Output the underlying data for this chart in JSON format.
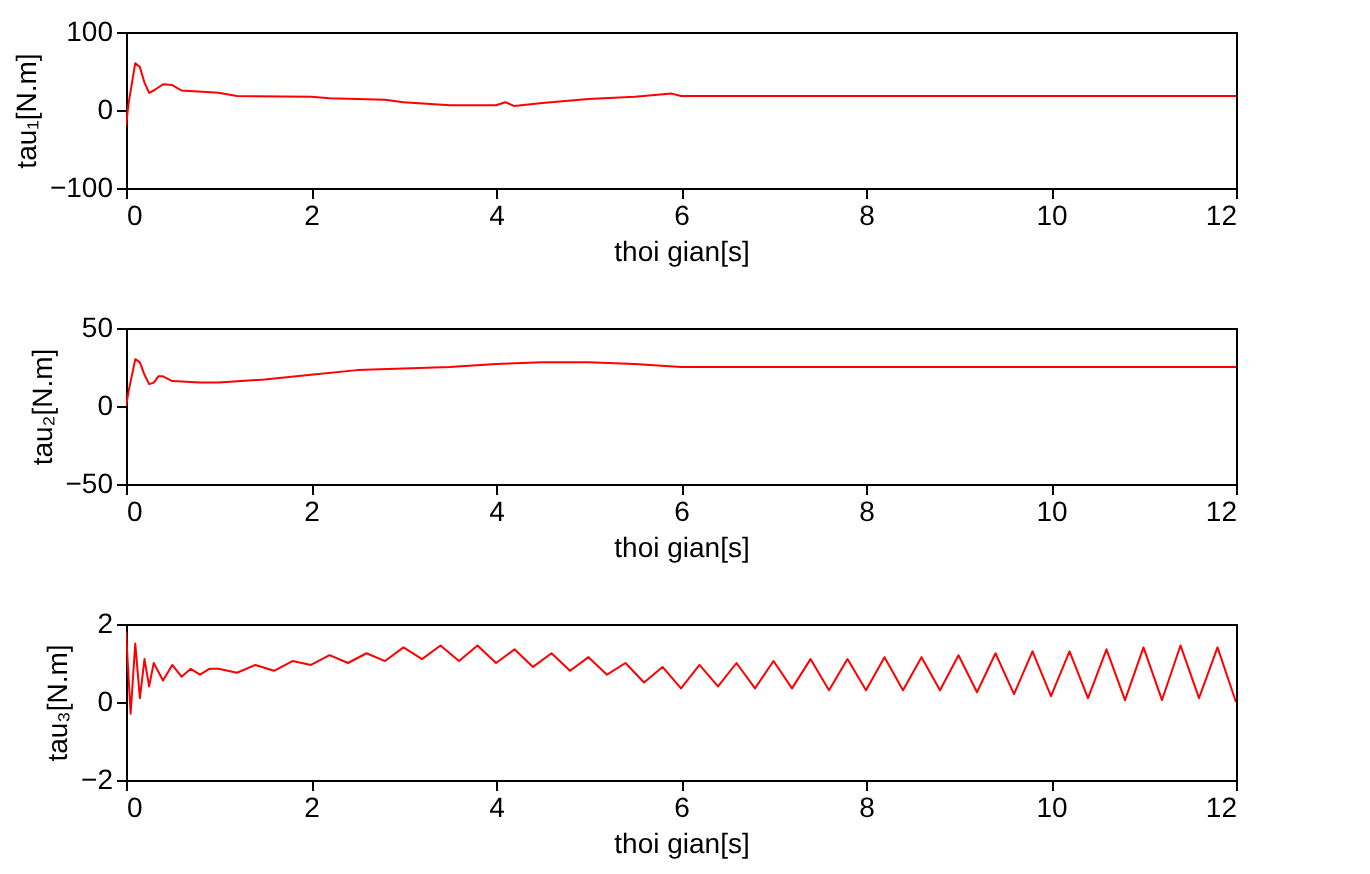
{
  "chart_data": [
    {
      "type": "line",
      "xlabel": "thoi gian[s]",
      "ylabel": "tau₁[N.m]",
      "xlim": [
        0,
        12
      ],
      "ylim": [
        -100,
        100
      ],
      "xticks": [
        0,
        2,
        4,
        6,
        8,
        10,
        12
      ],
      "yticks": [
        -100,
        0,
        100
      ],
      "grid": false,
      "x": [
        0,
        0.03,
        0.1,
        0.15,
        0.2,
        0.25,
        0.3,
        0.4,
        0.5,
        0.6,
        1.0,
        1.2,
        2.0,
        2.2,
        2.8,
        3.0,
        3.5,
        4.0,
        4.1,
        4.2,
        4.5,
        5.0,
        5.5,
        5.9,
        6.0,
        6.2,
        12
      ],
      "series": [
        {
          "color": "#ff0000",
          "values": [
            -20,
            10,
            60,
            55,
            35,
            22,
            25,
            33,
            32,
            25,
            22,
            18,
            17,
            15,
            13,
            10,
            6,
            6,
            10,
            5,
            9,
            14,
            17,
            21,
            18,
            18,
            18
          ]
        }
      ]
    },
    {
      "type": "line",
      "xlabel": "thoi gian[s]",
      "ylabel": "tau₂[N.m]",
      "xlim": [
        0,
        12
      ],
      "ylim": [
        -50,
        50
      ],
      "xticks": [
        0,
        2,
        4,
        6,
        8,
        10,
        12
      ],
      "yticks": [
        -50,
        0,
        50
      ],
      "grid": false,
      "x": [
        0,
        0.03,
        0.1,
        0.15,
        0.2,
        0.25,
        0.3,
        0.35,
        0.4,
        0.5,
        0.8,
        1.0,
        1.5,
        2,
        2.5,
        3,
        3.5,
        4,
        4.5,
        5,
        5.5,
        6,
        8,
        10,
        12
      ],
      "series": [
        {
          "color": "#ff0000",
          "values": [
            0,
            10,
            30,
            28,
            20,
            14,
            15,
            19,
            19,
            16,
            15,
            15,
            17,
            20,
            23,
            24,
            25,
            27,
            28,
            28,
            27,
            25,
            25,
            25,
            25
          ]
        }
      ]
    },
    {
      "type": "line",
      "xlabel": "thoi gian[s]",
      "ylabel": "tau₃[N.m]",
      "xlim": [
        0,
        12
      ],
      "ylim": [
        -2,
        2
      ],
      "xticks": [
        0,
        2,
        4,
        6,
        8,
        10,
        12
      ],
      "yticks": [
        -2,
        0,
        2
      ],
      "grid": false,
      "x": [
        0,
        0.05,
        0.1,
        0.15,
        0.2,
        0.25,
        0.3,
        0.4,
        0.5,
        0.6,
        0.7,
        0.8,
        0.9,
        1.0,
        1.2,
        1.4,
        1.6,
        1.8,
        2.0,
        2.2,
        2.4,
        2.6,
        2.8,
        3.0,
        3.2,
        3.4,
        3.6,
        3.8,
        4.0,
        4.2,
        4.4,
        4.6,
        4.8,
        5.0,
        5.2,
        5.4,
        5.6,
        5.8,
        6.0,
        6.2,
        6.4,
        6.6,
        6.8,
        7.0,
        7.2,
        7.4,
        7.6,
        7.8,
        8.0,
        8.2,
        8.4,
        8.6,
        8.8,
        9.0,
        9.2,
        9.4,
        9.6,
        9.8,
        10.0,
        10.2,
        10.4,
        10.6,
        10.8,
        11.0,
        11.2,
        11.4,
        11.6,
        11.8,
        12.0
      ],
      "series": [
        {
          "color": "#ff0000",
          "values": [
            1.8,
            -0.3,
            1.5,
            0.1,
            1.1,
            0.4,
            1.0,
            0.55,
            0.95,
            0.65,
            0.85,
            0.7,
            0.85,
            0.85,
            0.75,
            0.95,
            0.8,
            1.05,
            0.95,
            1.2,
            1.0,
            1.25,
            1.05,
            1.4,
            1.1,
            1.45,
            1.05,
            1.45,
            1.0,
            1.35,
            0.9,
            1.25,
            0.8,
            1.15,
            0.7,
            1.0,
            0.5,
            0.9,
            0.35,
            0.95,
            0.4,
            1.0,
            0.35,
            1.05,
            0.35,
            1.1,
            0.3,
            1.1,
            0.3,
            1.15,
            0.3,
            1.15,
            0.3,
            1.2,
            0.25,
            1.25,
            0.2,
            1.3,
            0.15,
            1.3,
            0.1,
            1.35,
            0.05,
            1.4,
            0.05,
            1.45,
            0.1,
            1.4,
            0.0
          ]
        }
      ]
    }
  ]
}
